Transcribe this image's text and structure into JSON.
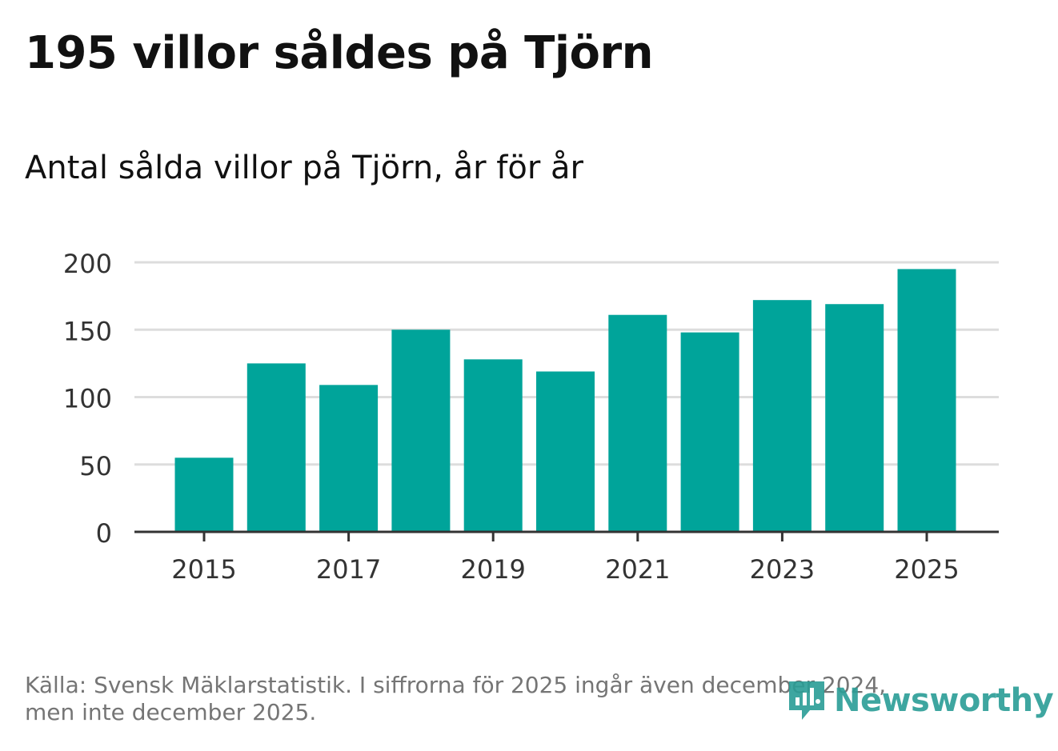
{
  "title": "195 villor såldes på Tjörn",
  "subtitle": "Antal sålda villor på Tjörn, år för år",
  "footer": {
    "line1": "Källa: Svensk Mäklarstatistik. I siffrorna för 2025 ingår även december 2024,",
    "line2": "men inte december 2025."
  },
  "brand": {
    "name": "Newsworthy",
    "icon": "newsworthy-logo-icon",
    "color": "#2a9d96"
  },
  "colors": {
    "bar": "#00a49a",
    "grid": "#dddddd",
    "axis": "#333333",
    "tick_text": "#333333"
  },
  "chart_data": {
    "type": "bar",
    "title": "195 villor såldes på Tjörn",
    "subtitle": "Antal sålda villor på Tjörn, år för år",
    "xlabel": "",
    "ylabel": "",
    "categories": [
      "2015",
      "2016",
      "2017",
      "2018",
      "2019",
      "2020",
      "2021",
      "2022",
      "2023",
      "2024",
      "2025"
    ],
    "values": [
      55,
      125,
      109,
      150,
      128,
      119,
      161,
      148,
      172,
      169,
      195
    ],
    "x_tick_labels": [
      "2015",
      "2017",
      "2019",
      "2021",
      "2023",
      "2025"
    ],
    "y_ticks": [
      0,
      50,
      100,
      150,
      200
    ],
    "y_tick_labels": [
      "0",
      "50",
      "100",
      "150",
      "200"
    ],
    "ylim": [
      0,
      200
    ],
    "grid": true,
    "legend": "none"
  }
}
